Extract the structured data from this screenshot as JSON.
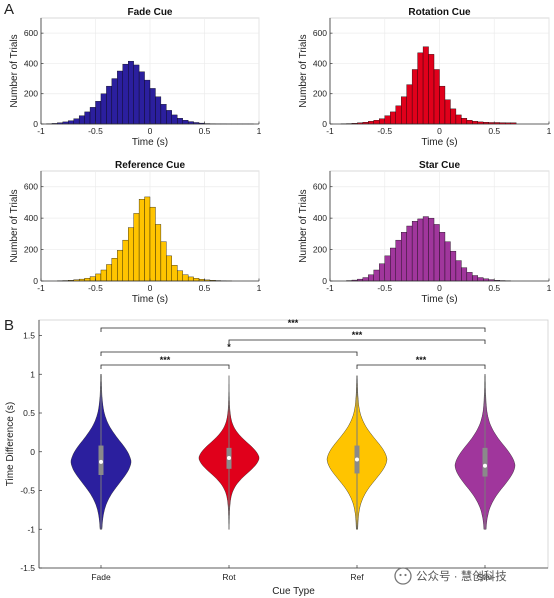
{
  "panel_labels": [
    "A",
    "B"
  ],
  "chart_data": [
    {
      "type": "bar",
      "title": "Fade Cue",
      "color": "#2b1f9e",
      "xlabel": "Time (s)",
      "ylabel": "Number of Trials",
      "xlim": [
        -1,
        1
      ],
      "ylim": [
        0,
        700
      ],
      "xticks": [
        "-1",
        "-0.5",
        "0",
        "0.5",
        "1"
      ],
      "yticks": [
        "0",
        "200",
        "400",
        "600"
      ],
      "bin_start": -0.95,
      "bin_width": 0.05,
      "values": [
        2,
        4,
        8,
        14,
        22,
        35,
        55,
        80,
        110,
        150,
        200,
        250,
        300,
        350,
        395,
        415,
        390,
        345,
        290,
        235,
        180,
        130,
        90,
        60,
        38,
        25,
        16,
        10,
        6,
        3,
        2,
        1,
        1,
        0,
        0,
        0,
        0,
        0
      ]
    },
    {
      "type": "bar",
      "title": "Rotation Cue",
      "color": "#e0001b",
      "xlabel": "Time (s)",
      "ylabel": "Number of Trials",
      "xlim": [
        -1,
        1
      ],
      "ylim": [
        0,
        700
      ],
      "xticks": [
        "-1",
        "-0.5",
        "0",
        "0.5",
        "1"
      ],
      "yticks": [
        "0",
        "200",
        "400",
        "600"
      ],
      "bin_start": -0.9,
      "bin_width": 0.05,
      "values": [
        2,
        3,
        5,
        8,
        12,
        18,
        25,
        35,
        55,
        80,
        120,
        180,
        260,
        360,
        470,
        510,
        460,
        360,
        250,
        160,
        100,
        60,
        38,
        25,
        18,
        14,
        12,
        10,
        10,
        9,
        8,
        8
      ]
    },
    {
      "type": "bar",
      "title": "Reference Cue",
      "color": "#ffc400",
      "xlabel": "Time (s)",
      "ylabel": "Number of Trials",
      "xlim": [
        -1,
        1
      ],
      "ylim": [
        0,
        700
      ],
      "xticks": [
        "-1",
        "-0.5",
        "0",
        "0.5",
        "1"
      ],
      "yticks": [
        "0",
        "200",
        "400",
        "600"
      ],
      "bin_start": -0.85,
      "bin_width": 0.05,
      "values": [
        2,
        3,
        5,
        8,
        12,
        18,
        28,
        45,
        70,
        105,
        145,
        195,
        260,
        340,
        430,
        520,
        535,
        470,
        360,
        250,
        160,
        100,
        65,
        40,
        26,
        17,
        11,
        7,
        5,
        3,
        2,
        1
      ]
    },
    {
      "type": "bar",
      "title": "Star Cue",
      "color": "#a0369c",
      "xlabel": "Time (s)",
      "ylabel": "Number of Trials",
      "xlim": [
        -1,
        1
      ],
      "ylim": [
        0,
        700
      ],
      "xticks": [
        "-1",
        "-0.5",
        "0",
        "0.5",
        "1"
      ],
      "yticks": [
        "0",
        "200",
        "400",
        "600"
      ],
      "bin_start": -0.85,
      "bin_width": 0.05,
      "values": [
        3,
        6,
        12,
        22,
        40,
        70,
        110,
        160,
        210,
        260,
        310,
        350,
        380,
        395,
        410,
        400,
        360,
        310,
        250,
        190,
        130,
        85,
        55,
        35,
        22,
        14,
        9,
        5,
        3,
        2
      ]
    },
    {
      "type": "violin",
      "xlabel": "Cue Type",
      "ylabel": "Time Difference (s)",
      "ylim": [
        -1.5,
        1.7
      ],
      "yticks": [
        "-1.5",
        "-1",
        "-0.5",
        "0",
        "0.5",
        "1",
        "1.5"
      ],
      "categories": [
        "Fade",
        "Rot",
        "Ref",
        "Star"
      ],
      "colors": [
        "#2b1f9e",
        "#e0001b",
        "#ffc400",
        "#a0369c"
      ],
      "median": [
        -0.13,
        -0.08,
        -0.1,
        -0.18
      ],
      "q1": [
        -0.3,
        -0.22,
        -0.28,
        -0.32
      ],
      "q3": [
        0.08,
        0.05,
        0.08,
        0.05
      ],
      "range": [
        [
          -1.0,
          1.0
        ],
        [
          -1.0,
          0.98
        ],
        [
          -1.0,
          0.98
        ],
        [
          -1.0,
          1.0
        ]
      ],
      "comparisons": [
        {
          "from": "Fade",
          "to": "Star",
          "label": "***"
        },
        {
          "from": "Rot",
          "to": "Star",
          "label": "***"
        },
        {
          "from": "Fade",
          "to": "Ref",
          "label": "*"
        },
        {
          "from": "Fade",
          "to": "Rot",
          "label": "***"
        },
        {
          "from": "Ref",
          "to": "Star",
          "label": "***"
        }
      ]
    }
  ],
  "watermark": {
    "text": "公众号 · 慧创科技"
  }
}
